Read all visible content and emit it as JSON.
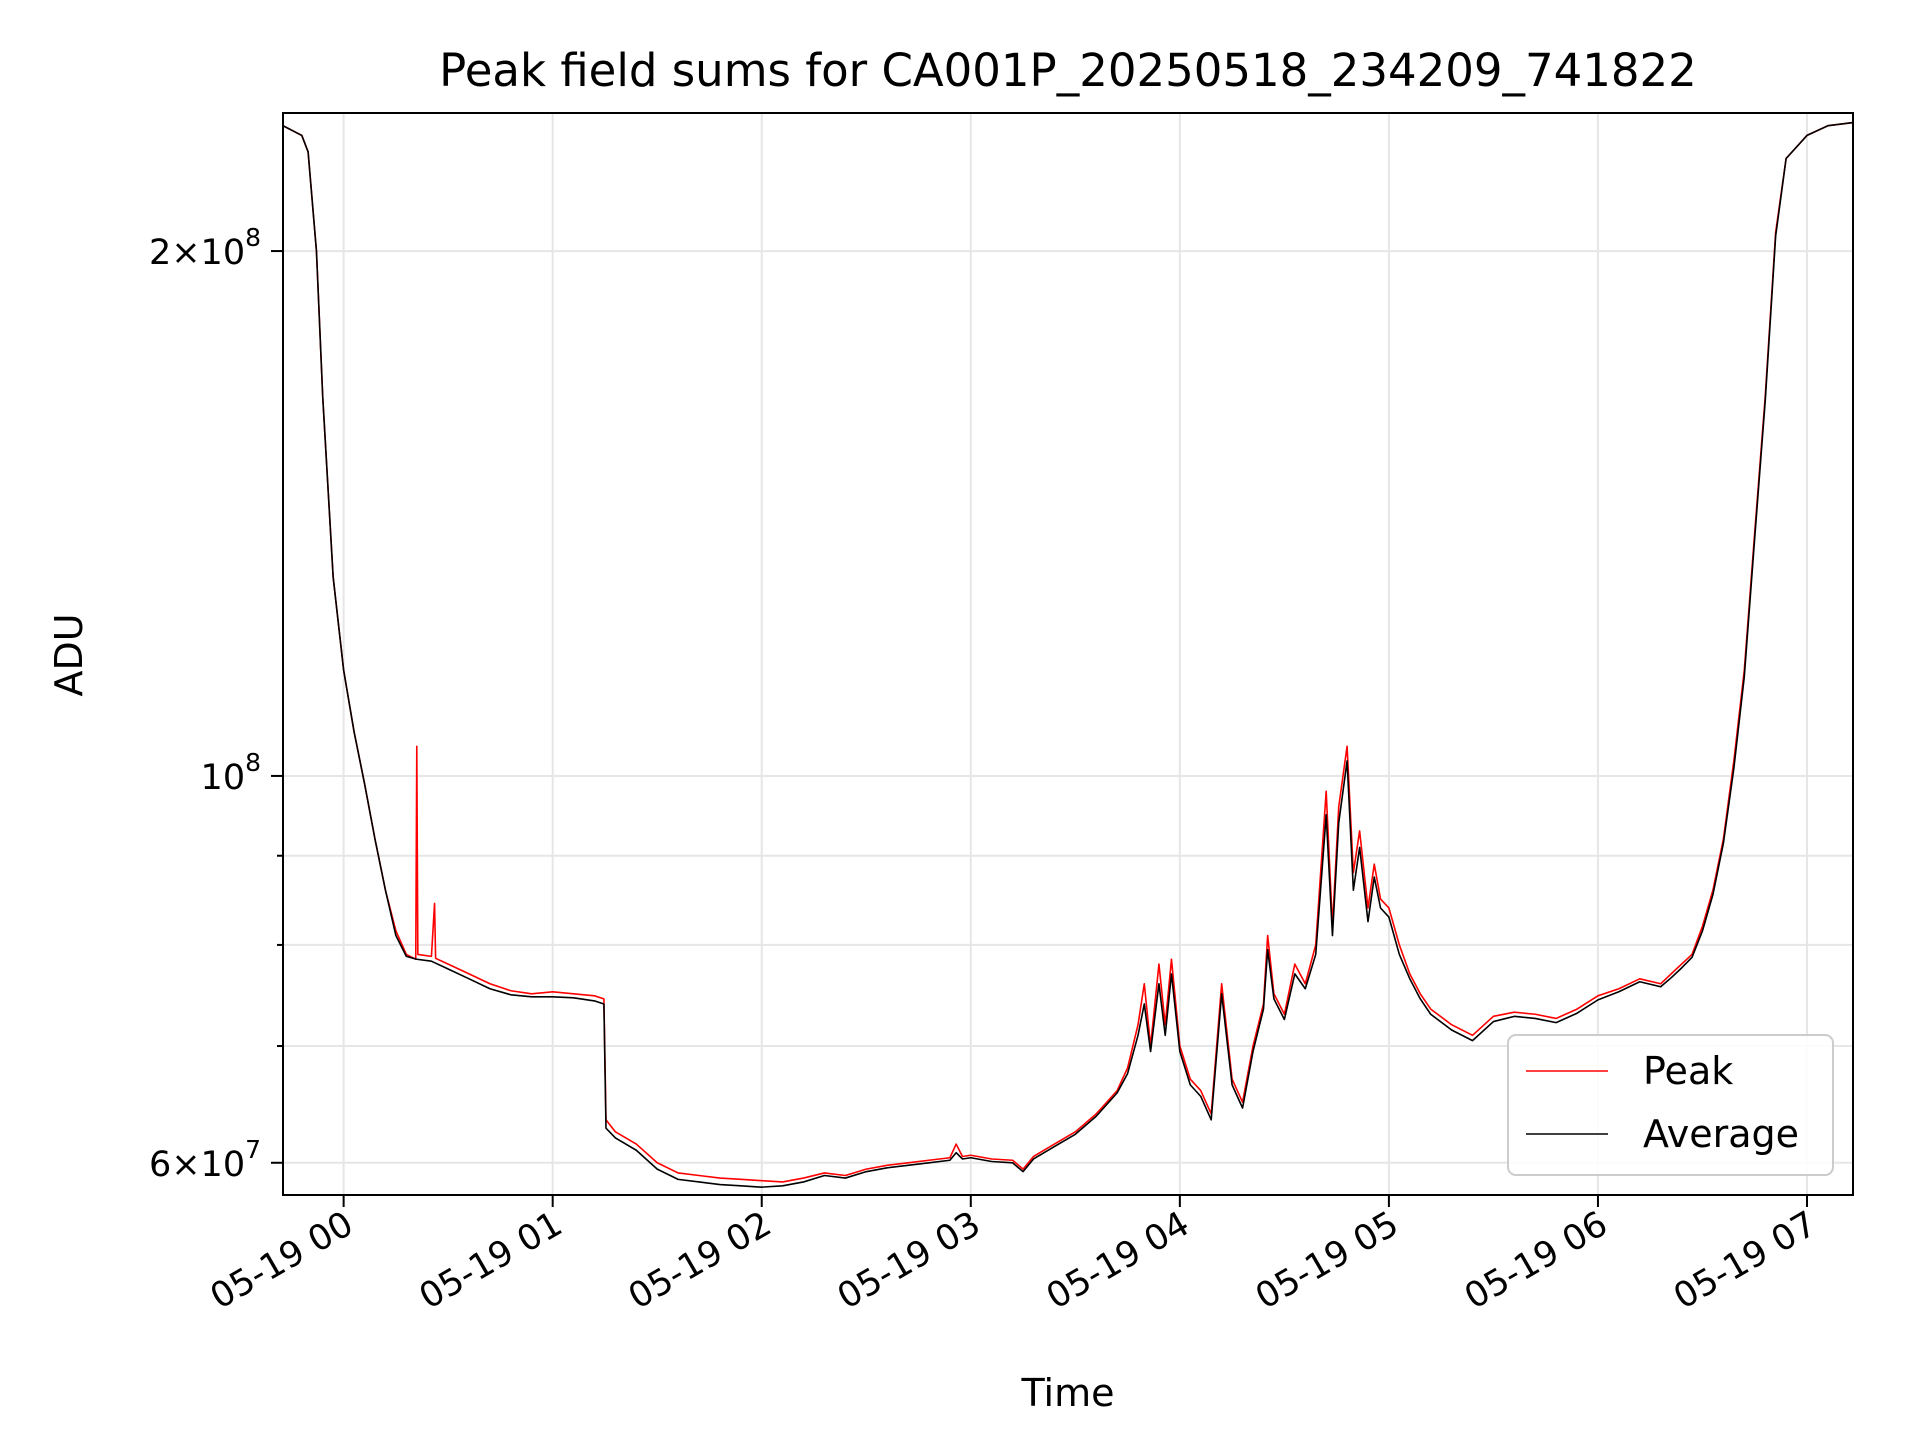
{
  "chart_data": {
    "type": "line",
    "title": "Peak field sums for CA001P_20250518_234209_741822",
    "xlabel": "Time",
    "ylabel": "ADU",
    "y_scale": "log",
    "ylim": [
      57500000,
      240000000
    ],
    "xlim_hours": [
      -0.29,
      7.22
    ],
    "grid": true,
    "legend_position": "lower-right",
    "x_ticks": [
      {
        "hour": 0,
        "label": "05-19 00"
      },
      {
        "hour": 1,
        "label": "05-19 01"
      },
      {
        "hour": 2,
        "label": "05-19 02"
      },
      {
        "hour": 3,
        "label": "05-19 03"
      },
      {
        "hour": 4,
        "label": "05-19 04"
      },
      {
        "hour": 5,
        "label": "05-19 05"
      },
      {
        "hour": 6,
        "label": "05-19 06"
      },
      {
        "hour": 7,
        "label": "05-19 07"
      }
    ],
    "y_ticks": [
      {
        "value": 60000000,
        "mantissa": "6",
        "exponent": "7"
      },
      {
        "value": 100000000,
        "mantissa": "",
        "exponent": "8"
      },
      {
        "value": 200000000,
        "mantissa": "2",
        "exponent": "8"
      }
    ],
    "y_minor_grid": [
      70000000,
      80000000,
      90000000
    ],
    "times_base": "05-19 00",
    "series": [
      {
        "name": "Peak",
        "color": "#ff0000",
        "points": [
          [
            -0.29,
            236000000
          ],
          [
            -0.2,
            233000000
          ],
          [
            -0.17,
            228000000
          ],
          [
            -0.13,
            200000000
          ],
          [
            -0.1,
            165000000
          ],
          [
            -0.05,
            130000000
          ],
          [
            0.0,
            115000000
          ],
          [
            0.05,
            106000000
          ],
          [
            0.1,
            99000000
          ],
          [
            0.15,
            92000000
          ],
          [
            0.2,
            86000000
          ],
          [
            0.25,
            81500000
          ],
          [
            0.3,
            79000000
          ],
          [
            0.345,
            78500000
          ],
          [
            0.35,
            104000000
          ],
          [
            0.355,
            79000000
          ],
          [
            0.42,
            78800000
          ],
          [
            0.435,
            84500000
          ],
          [
            0.44,
            78600000
          ],
          [
            0.5,
            78000000
          ],
          [
            0.6,
            77000000
          ],
          [
            0.7,
            76000000
          ],
          [
            0.8,
            75300000
          ],
          [
            0.9,
            75000000
          ],
          [
            1.0,
            75200000
          ],
          [
            1.1,
            75000000
          ],
          [
            1.2,
            74800000
          ],
          [
            1.245,
            74500000
          ],
          [
            1.255,
            63500000
          ],
          [
            1.3,
            62500000
          ],
          [
            1.4,
            61500000
          ],
          [
            1.5,
            60000000
          ],
          [
            1.6,
            59200000
          ],
          [
            1.7,
            59000000
          ],
          [
            1.8,
            58800000
          ],
          [
            1.9,
            58700000
          ],
          [
            2.0,
            58600000
          ],
          [
            2.1,
            58500000
          ],
          [
            2.2,
            58800000
          ],
          [
            2.3,
            59200000
          ],
          [
            2.4,
            59000000
          ],
          [
            2.5,
            59500000
          ],
          [
            2.6,
            59800000
          ],
          [
            2.7,
            60000000
          ],
          [
            2.8,
            60200000
          ],
          [
            2.9,
            60400000
          ],
          [
            2.93,
            61500000
          ],
          [
            2.96,
            60500000
          ],
          [
            3.0,
            60600000
          ],
          [
            3.1,
            60300000
          ],
          [
            3.2,
            60200000
          ],
          [
            3.25,
            59500000
          ],
          [
            3.3,
            60500000
          ],
          [
            3.4,
            61500000
          ],
          [
            3.5,
            62500000
          ],
          [
            3.6,
            64000000
          ],
          [
            3.7,
            66000000
          ],
          [
            3.75,
            68000000
          ],
          [
            3.8,
            72000000
          ],
          [
            3.83,
            76000000
          ],
          [
            3.86,
            70000000
          ],
          [
            3.9,
            78000000
          ],
          [
            3.93,
            72000000
          ],
          [
            3.96,
            78500000
          ],
          [
            4.0,
            70000000
          ],
          [
            4.05,
            67000000
          ],
          [
            4.1,
            66000000
          ],
          [
            4.15,
            64000000
          ],
          [
            4.2,
            76000000
          ],
          [
            4.25,
            67000000
          ],
          [
            4.3,
            65000000
          ],
          [
            4.35,
            70000000
          ],
          [
            4.4,
            74000000
          ],
          [
            4.42,
            81000000
          ],
          [
            4.45,
            75000000
          ],
          [
            4.5,
            73000000
          ],
          [
            4.55,
            78000000
          ],
          [
            4.6,
            76000000
          ],
          [
            4.65,
            80000000
          ],
          [
            4.7,
            98000000
          ],
          [
            4.73,
            82000000
          ],
          [
            4.76,
            96000000
          ],
          [
            4.8,
            104000000
          ],
          [
            4.83,
            88000000
          ],
          [
            4.86,
            93000000
          ],
          [
            4.9,
            84000000
          ],
          [
            4.93,
            89000000
          ],
          [
            4.96,
            85000000
          ],
          [
            5.0,
            84000000
          ],
          [
            5.05,
            80000000
          ],
          [
            5.1,
            77000000
          ],
          [
            5.15,
            75000000
          ],
          [
            5.2,
            73500000
          ],
          [
            5.3,
            72000000
          ],
          [
            5.4,
            71000000
          ],
          [
            5.5,
            72800000
          ],
          [
            5.6,
            73200000
          ],
          [
            5.7,
            73000000
          ],
          [
            5.8,
            72600000
          ],
          [
            5.9,
            73500000
          ],
          [
            6.0,
            74800000
          ],
          [
            6.1,
            75500000
          ],
          [
            6.2,
            76500000
          ],
          [
            6.3,
            76000000
          ],
          [
            6.35,
            77000000
          ],
          [
            6.4,
            78000000
          ],
          [
            6.45,
            79000000
          ],
          [
            6.5,
            82000000
          ],
          [
            6.55,
            86000000
          ],
          [
            6.6,
            92000000
          ],
          [
            6.65,
            102000000
          ],
          [
            6.7,
            115000000
          ],
          [
            6.75,
            138000000
          ],
          [
            6.8,
            165000000
          ],
          [
            6.85,
            205000000
          ],
          [
            6.9,
            226000000
          ],
          [
            7.0,
            233000000
          ],
          [
            7.1,
            236000000
          ],
          [
            7.22,
            237000000
          ]
        ]
      },
      {
        "name": "Average",
        "color": "#000000",
        "points": [
          [
            -0.29,
            236000000
          ],
          [
            -0.2,
            233000000
          ],
          [
            -0.17,
            228000000
          ],
          [
            -0.13,
            200000000
          ],
          [
            -0.1,
            165000000
          ],
          [
            -0.05,
            130000000
          ],
          [
            0.0,
            115000000
          ],
          [
            0.05,
            106000000
          ],
          [
            0.1,
            99000000
          ],
          [
            0.15,
            92000000
          ],
          [
            0.2,
            86000000
          ],
          [
            0.25,
            81000000
          ],
          [
            0.3,
            78800000
          ],
          [
            0.35,
            78500000
          ],
          [
            0.42,
            78300000
          ],
          [
            0.5,
            77500000
          ],
          [
            0.6,
            76500000
          ],
          [
            0.7,
            75500000
          ],
          [
            0.8,
            74900000
          ],
          [
            0.9,
            74700000
          ],
          [
            1.0,
            74700000
          ],
          [
            1.1,
            74600000
          ],
          [
            1.2,
            74300000
          ],
          [
            1.245,
            74000000
          ],
          [
            1.255,
            62800000
          ],
          [
            1.3,
            62000000
          ],
          [
            1.4,
            61000000
          ],
          [
            1.5,
            59500000
          ],
          [
            1.6,
            58700000
          ],
          [
            1.7,
            58500000
          ],
          [
            1.8,
            58300000
          ],
          [
            1.9,
            58200000
          ],
          [
            2.0,
            58100000
          ],
          [
            2.1,
            58200000
          ],
          [
            2.2,
            58500000
          ],
          [
            2.3,
            59000000
          ],
          [
            2.4,
            58800000
          ],
          [
            2.5,
            59300000
          ],
          [
            2.6,
            59600000
          ],
          [
            2.7,
            59800000
          ],
          [
            2.8,
            60000000
          ],
          [
            2.9,
            60200000
          ],
          [
            2.93,
            60800000
          ],
          [
            2.96,
            60300000
          ],
          [
            3.0,
            60400000
          ],
          [
            3.1,
            60100000
          ],
          [
            3.2,
            60000000
          ],
          [
            3.25,
            59300000
          ],
          [
            3.3,
            60300000
          ],
          [
            3.4,
            61300000
          ],
          [
            3.5,
            62300000
          ],
          [
            3.6,
            63800000
          ],
          [
            3.7,
            65800000
          ],
          [
            3.75,
            67500000
          ],
          [
            3.8,
            71000000
          ],
          [
            3.83,
            74000000
          ],
          [
            3.86,
            69500000
          ],
          [
            3.9,
            76000000
          ],
          [
            3.93,
            71000000
          ],
          [
            3.96,
            77000000
          ],
          [
            4.0,
            69500000
          ],
          [
            4.05,
            66500000
          ],
          [
            4.1,
            65500000
          ],
          [
            4.15,
            63500000
          ],
          [
            4.2,
            75000000
          ],
          [
            4.25,
            66500000
          ],
          [
            4.3,
            64500000
          ],
          [
            4.35,
            69500000
          ],
          [
            4.4,
            73500000
          ],
          [
            4.42,
            79500000
          ],
          [
            4.45,
            74500000
          ],
          [
            4.5,
            72500000
          ],
          [
            4.55,
            77000000
          ],
          [
            4.6,
            75500000
          ],
          [
            4.65,
            79000000
          ],
          [
            4.7,
            95000000
          ],
          [
            4.73,
            81000000
          ],
          [
            4.76,
            94000000
          ],
          [
            4.8,
            102000000
          ],
          [
            4.83,
            86000000
          ],
          [
            4.86,
            91000000
          ],
          [
            4.9,
            82500000
          ],
          [
            4.93,
            87500000
          ],
          [
            4.96,
            84000000
          ],
          [
            5.0,
            83000000
          ],
          [
            5.05,
            79000000
          ],
          [
            5.1,
            76500000
          ],
          [
            5.15,
            74500000
          ],
          [
            5.2,
            73000000
          ],
          [
            5.3,
            71500000
          ],
          [
            5.4,
            70500000
          ],
          [
            5.5,
            72300000
          ],
          [
            5.6,
            72800000
          ],
          [
            5.7,
            72600000
          ],
          [
            5.8,
            72200000
          ],
          [
            5.9,
            73100000
          ],
          [
            6.0,
            74400000
          ],
          [
            6.1,
            75200000
          ],
          [
            6.2,
            76200000
          ],
          [
            6.3,
            75700000
          ],
          [
            6.35,
            76600000
          ],
          [
            6.4,
            77600000
          ],
          [
            6.45,
            78700000
          ],
          [
            6.5,
            81500000
          ],
          [
            6.55,
            85500000
          ],
          [
            6.6,
            91500000
          ],
          [
            6.65,
            101000000
          ],
          [
            6.7,
            114000000
          ],
          [
            6.75,
            137000000
          ],
          [
            6.8,
            164000000
          ],
          [
            6.85,
            204000000
          ],
          [
            6.9,
            226000000
          ],
          [
            7.0,
            233000000
          ],
          [
            7.1,
            236000000
          ],
          [
            7.22,
            237000000
          ]
        ]
      }
    ]
  }
}
